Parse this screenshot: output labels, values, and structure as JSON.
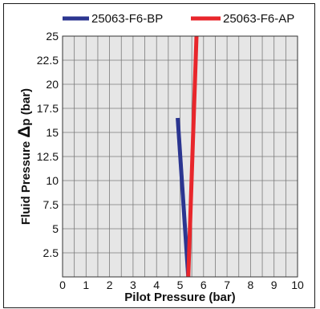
{
  "chart_data": {
    "type": "line",
    "xlabel": "Pilot Pressure (bar)",
    "ylabel_prefix": "Fluid Pressure ",
    "ylabel_delta": "Δ",
    "ylabel_suffix": "p (bar)",
    "xlim": [
      0,
      10
    ],
    "ylim": [
      0,
      25
    ],
    "grid": true,
    "legend_position": "top",
    "x_ticks": [
      "0",
      "1",
      "2",
      "3",
      "4",
      "5",
      "6",
      "7",
      "8",
      "9",
      "10"
    ],
    "y_ticks": [
      "2.5",
      "5",
      "7.5",
      "10",
      "12.5",
      "15",
      "17.5",
      "20",
      "22.5",
      "25"
    ],
    "series": [
      {
        "name": "25063-F6-BP",
        "color": "#2b3590",
        "x": [
          4.9,
          5.35
        ],
        "y": [
          16.5,
          0
        ]
      },
      {
        "name": "25063-F6-AP",
        "color": "#e8262b",
        "x": [
          5.35,
          5.7
        ],
        "y": [
          0,
          25
        ]
      }
    ]
  }
}
